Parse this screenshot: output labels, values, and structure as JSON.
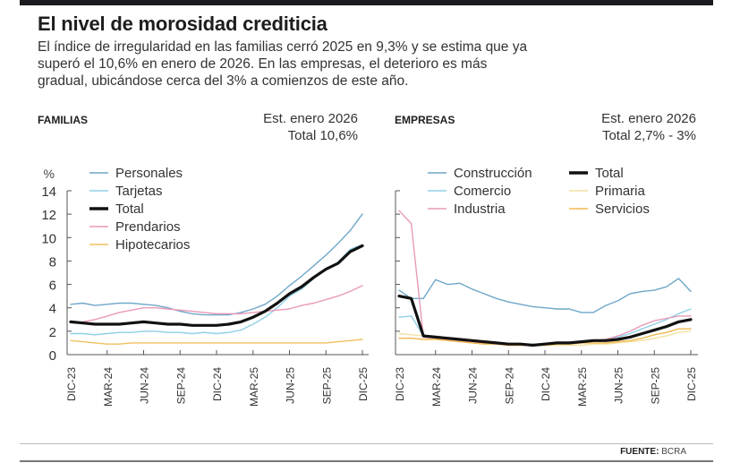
{
  "header": {
    "title": "El nivel de morosidad crediticia",
    "subtitle": "El índice de irregularidad en las familias cerró 2025 en 9,3% y se estima que ya superó el 10,6% en enero de 2026. En las empresas, el deterioro es más gradual, ubicándose cerca del 3% a comienzos de este año."
  },
  "footer": {
    "source_label": "FUENTE:",
    "source_value": "BCRA"
  },
  "chart_data": [
    {
      "type": "line",
      "title": "FAMILIAS",
      "annotation_line1": "Est. enero 2026",
      "annotation_line2": "Total 10,6%",
      "ylabel": "%",
      "ylim": [
        0,
        14
      ],
      "yticks": [
        0,
        2,
        4,
        6,
        8,
        10,
        12,
        14
      ],
      "xtick_labels": [
        "DIC-23",
        "MAR-24",
        "JUN-24",
        "SEP-24",
        "DIC-24",
        "MAR-25",
        "JUN-25",
        "SEP-25",
        "DIC-25"
      ],
      "x": [
        "DIC-23",
        "ENE-24",
        "FEB-24",
        "MAR-24",
        "ABR-24",
        "MAY-24",
        "JUN-24",
        "JUL-24",
        "AGO-24",
        "SEP-24",
        "OCT-24",
        "NOV-24",
        "DIC-24",
        "ENE-25",
        "FEB-25",
        "MAR-25",
        "ABR-25",
        "MAY-25",
        "JUN-25",
        "JUL-25",
        "AGO-25",
        "SEP-25",
        "OCT-25",
        "NOV-25",
        "DIC-25"
      ],
      "legend_position": "top-left",
      "series": [
        {
          "name": "Personales",
          "color": "#6fa7c8",
          "width": 1.4,
          "values": [
            4.3,
            4.4,
            4.2,
            4.3,
            4.4,
            4.4,
            4.3,
            4.2,
            4.0,
            3.7,
            3.5,
            3.4,
            3.4,
            3.4,
            3.6,
            3.9,
            4.3,
            5.0,
            5.9,
            6.7,
            7.6,
            8.5,
            9.5,
            10.6,
            12.0
          ]
        },
        {
          "name": "Tarjetas",
          "color": "#8fd0e6",
          "width": 1.4,
          "values": [
            1.8,
            1.8,
            1.7,
            1.8,
            1.9,
            1.9,
            2.0,
            2.0,
            1.9,
            1.9,
            1.8,
            1.9,
            1.8,
            1.9,
            2.1,
            2.6,
            3.2,
            4.0,
            5.0,
            5.6,
            6.5,
            7.3,
            7.9,
            9.0,
            9.4
          ]
        },
        {
          "name": "Total",
          "color": "#111111",
          "width": 3.2,
          "values": [
            2.8,
            2.7,
            2.6,
            2.6,
            2.6,
            2.7,
            2.8,
            2.7,
            2.6,
            2.6,
            2.5,
            2.5,
            2.5,
            2.6,
            2.8,
            3.2,
            3.7,
            4.4,
            5.2,
            5.8,
            6.6,
            7.3,
            7.8,
            8.8,
            9.3
          ]
        },
        {
          "name": "Prendarios",
          "color": "#e89ab8",
          "width": 1.4,
          "values": [
            2.8,
            2.8,
            3.0,
            3.3,
            3.6,
            3.8,
            4.0,
            4.0,
            3.9,
            3.8,
            3.7,
            3.6,
            3.5,
            3.5,
            3.5,
            3.6,
            3.7,
            3.8,
            3.9,
            4.2,
            4.4,
            4.7,
            5.0,
            5.4,
            5.9
          ]
        },
        {
          "name": "Hipotecarios",
          "color": "#f0c060",
          "width": 1.4,
          "values": [
            1.2,
            1.1,
            1.0,
            0.9,
            0.9,
            1.0,
            1.0,
            1.0,
            1.0,
            1.0,
            1.0,
            1.0,
            1.0,
            1.0,
            1.0,
            1.0,
            1.0,
            1.0,
            1.0,
            1.0,
            1.0,
            1.0,
            1.1,
            1.2,
            1.3
          ]
        }
      ]
    },
    {
      "type": "line",
      "title": "EMPRESAS",
      "annotation_line1": "Est. enero 2026",
      "annotation_line2": "Total 2,7% - 3%",
      "ylabel": "",
      "ylim": [
        0,
        14
      ],
      "yticks": [
        0,
        2,
        4,
        6,
        8,
        10,
        12,
        14
      ],
      "xtick_labels": [
        "DIC-23",
        "MAR-24",
        "JUN-24",
        "SEP-24",
        "DIC-24",
        "MAR-25",
        "JUN-25",
        "SEP-25",
        "DIC-25"
      ],
      "x": [
        "DIC-23",
        "ENE-24",
        "FEB-24",
        "MAR-24",
        "ABR-24",
        "MAY-24",
        "JUN-24",
        "JUL-24",
        "AGO-24",
        "SEP-24",
        "OCT-24",
        "NOV-24",
        "DIC-24",
        "ENE-25",
        "FEB-25",
        "MAR-25",
        "ABR-25",
        "MAY-25",
        "JUN-25",
        "JUL-25",
        "AGO-25",
        "SEP-25",
        "OCT-25",
        "NOV-25",
        "DIC-25"
      ],
      "legend_position": "top",
      "series": [
        {
          "name": "Construcción",
          "color": "#6fa7c8",
          "width": 1.4,
          "values": [
            5.5,
            4.8,
            4.8,
            6.4,
            6.0,
            6.1,
            5.6,
            5.2,
            4.8,
            4.5,
            4.3,
            4.1,
            4.0,
            3.9,
            3.9,
            3.6,
            3.6,
            4.2,
            4.6,
            5.2,
            5.4,
            5.5,
            5.8,
            6.5,
            5.4
          ]
        },
        {
          "name": "Comercio",
          "color": "#8fd0e6",
          "width": 1.4,
          "values": [
            3.2,
            3.3,
            1.6,
            1.5,
            1.4,
            1.3,
            1.2,
            1.1,
            1.0,
            0.9,
            0.9,
            0.9,
            0.9,
            1.0,
            1.0,
            1.1,
            1.2,
            1.3,
            1.5,
            1.8,
            2.2,
            2.6,
            3.0,
            3.5,
            3.9
          ]
        },
        {
          "name": "Industria",
          "color": "#e89ab8",
          "width": 1.4,
          "values": [
            12.3,
            11.2,
            1.5,
            1.4,
            1.3,
            1.2,
            1.1,
            1.0,
            0.9,
            0.8,
            0.8,
            0.8,
            0.9,
            1.0,
            1.0,
            1.1,
            1.2,
            1.3,
            1.6,
            2.0,
            2.5,
            2.9,
            3.1,
            3.3,
            3.3
          ]
        },
        {
          "name": "Total",
          "color": "#111111",
          "width": 3.2,
          "values": [
            5.0,
            4.8,
            1.6,
            1.5,
            1.4,
            1.3,
            1.2,
            1.1,
            1.0,
            0.9,
            0.9,
            0.8,
            0.9,
            1.0,
            1.0,
            1.1,
            1.2,
            1.2,
            1.3,
            1.5,
            1.8,
            2.1,
            2.4,
            2.8,
            3.0
          ]
        },
        {
          "name": "Primaria",
          "color": "#f2e2a0",
          "width": 1.4,
          "values": [
            1.8,
            1.7,
            1.6,
            1.5,
            1.4,
            1.3,
            1.2,
            1.1,
            1.0,
            0.9,
            0.8,
            0.8,
            0.8,
            0.8,
            0.8,
            0.8,
            0.9,
            0.9,
            1.0,
            1.1,
            1.2,
            1.4,
            1.6,
            1.9,
            2.0
          ]
        },
        {
          "name": "Servicios",
          "color": "#f0b850",
          "width": 1.4,
          "values": [
            1.4,
            1.4,
            1.3,
            1.3,
            1.2,
            1.1,
            1.0,
            0.9,
            0.9,
            0.8,
            0.8,
            0.8,
            0.8,
            0.9,
            0.9,
            1.0,
            1.0,
            1.0,
            1.1,
            1.2,
            1.4,
            1.7,
            1.9,
            2.2,
            2.2
          ]
        }
      ]
    }
  ]
}
